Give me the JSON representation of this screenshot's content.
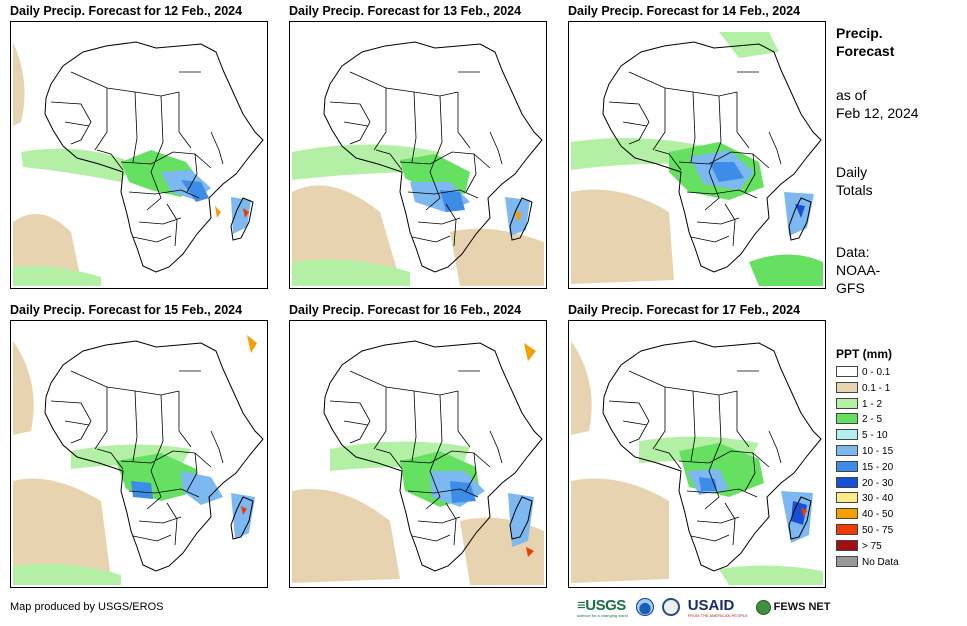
{
  "panels": [
    {
      "title": "Daily Precip. Forecast for 12 Feb., 2024",
      "day": "12"
    },
    {
      "title": "Daily Precip. Forecast for 13 Feb., 2024",
      "day": "13"
    },
    {
      "title": "Daily Precip. Forecast for 14 Feb., 2024",
      "day": "14"
    },
    {
      "title": "Daily Precip. Forecast for 15 Feb., 2024",
      "day": "15"
    },
    {
      "title": "Daily Precip. Forecast for 16 Feb., 2024",
      "day": "16"
    },
    {
      "title": "Daily Precip. Forecast for 17 Feb., 2024",
      "day": "17"
    }
  ],
  "side": {
    "title_line1": "Precip.",
    "title_line2": "Forecast",
    "asof_line1": "as of",
    "asof_line2": "Feb 12, 2024",
    "totals_line1": "Daily",
    "totals_line2": "Totals",
    "source_line1": "Data:",
    "source_line2": "NOAA-",
    "source_line3": "GFS"
  },
  "legend": {
    "title": "PPT (mm)",
    "items": [
      {
        "label": "0 - 0.1",
        "color": "#ffffff"
      },
      {
        "label": "0.1 - 1",
        "color": "#e8d3b0"
      },
      {
        "label": "1 - 2",
        "color": "#b3f0a5"
      },
      {
        "label": "2 - 5",
        "color": "#66e060"
      },
      {
        "label": "5 - 10",
        "color": "#b2eef0"
      },
      {
        "label": "10 - 15",
        "color": "#7db8f0"
      },
      {
        "label": "15 - 20",
        "color": "#3d8de8"
      },
      {
        "label": "20 - 30",
        "color": "#1650d8"
      },
      {
        "label": "30 - 40",
        "color": "#fce98a"
      },
      {
        "label": "40 - 50",
        "color": "#f5a000"
      },
      {
        "label": "50 - 75",
        "color": "#f03a00"
      },
      {
        "label": "> 75",
        "color": "#a01010"
      },
      {
        "label": "No Data",
        "color": "#999999"
      }
    ]
  },
  "footer": {
    "credit": "Map produced by USGS/EROS",
    "logo_usgs": "≡USGS",
    "logo_usgs_tagline": "science for a changing world",
    "logo_usaid": "USAID",
    "logo_usaid_tagline": "FROM THE AMERICAN PEOPLE",
    "logo_fews": "FEWS NET"
  }
}
